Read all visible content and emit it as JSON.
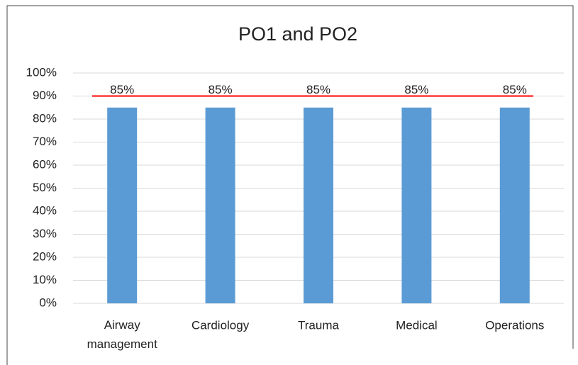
{
  "chart_data": {
    "type": "bar",
    "title": "PO1 and PO2",
    "categories": [
      "Airway management",
      "Cardiology",
      "Trauma",
      "Medical",
      "Operations"
    ],
    "values": [
      85,
      85,
      85,
      85,
      85
    ],
    "value_labels": [
      "85%",
      "85%",
      "85%",
      "85%",
      "85%"
    ],
    "color": "#5b9bd5",
    "ylim": [
      0,
      100
    ],
    "yticks": [
      {
        "value": 0,
        "label": "0%"
      },
      {
        "value": 10,
        "label": "10%"
      },
      {
        "value": 20,
        "label": "20%"
      },
      {
        "value": 30,
        "label": "30%"
      },
      {
        "value": 40,
        "label": "40%"
      },
      {
        "value": 50,
        "label": "50%"
      },
      {
        "value": 60,
        "label": "60%"
      },
      {
        "value": 70,
        "label": "70%"
      },
      {
        "value": 80,
        "label": "80%"
      },
      {
        "value": 90,
        "label": "90%"
      },
      {
        "value": 100,
        "label": "100%"
      }
    ],
    "grid": true,
    "reference_line": {
      "value": 90,
      "color": "#ff0000"
    }
  }
}
